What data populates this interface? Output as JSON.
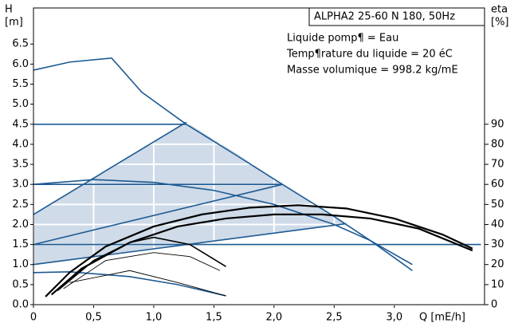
{
  "chart_data": {
    "type": "line",
    "title": "ALPHA2 25-60 N 180, 50Hz",
    "annotations": [
      "Liquide pomp¶ = Eau",
      "Temp¶rature du liquide = 20 éC",
      "Masse volumique = 998.2 kg/mE"
    ],
    "y_label": "H",
    "y_unit": "[m]",
    "y2_label": "eta",
    "y2_unit": "[%]",
    "x_label": "Q [mE/h]",
    "xlim": [
      0,
      3.75
    ],
    "ylim": [
      0,
      7.4
    ],
    "y2lim": [
      0,
      148
    ],
    "xticks": [
      0,
      {
        "value": 0.5,
        "label": "0,5"
      },
      {
        "value": 1,
        "label": "1,0"
      },
      {
        "value": 1.5,
        "label": "1,5"
      },
      {
        "value": 2,
        "label": "2,0"
      },
      {
        "value": 2.5,
        "label": "2,5"
      },
      {
        "value": 3,
        "label": "3,0"
      }
    ],
    "yticks": [
      {
        "value": 0,
        "label": "0.0"
      },
      0.5,
      {
        "value": 1,
        "label": "1.0"
      },
      1.5,
      {
        "value": 2,
        "label": "2.0"
      },
      2.5,
      {
        "value": 3,
        "label": "3.0"
      },
      3.5,
      {
        "value": 4,
        "label": "4.0"
      },
      4.5,
      {
        "value": 5,
        "label": "5.0"
      },
      5.5,
      {
        "value": 6,
        "label": "6.0"
      },
      6.5
    ],
    "y2ticks": [
      0,
      10,
      20,
      30,
      40,
      50,
      60,
      70,
      80,
      90
    ],
    "grid": true,
    "grid_color": "#ffffff",
    "area": {
      "color": "#cfdbe8",
      "x": [
        0,
        0,
        1.27,
        1.7,
        2.07,
        2.6
      ],
      "values": [
        1.0,
        2.25,
        4.55,
        3.75,
        3.0,
        2.02
      ]
    },
    "series": [
      {
        "color": "#1d5a92",
        "width": 1.6,
        "x": [
          0,
          0.3,
          0.65,
          0.9,
          1.27,
          1.7,
          2.07,
          2.5,
          2.8,
          3.15
        ],
        "values": [
          5.85,
          6.05,
          6.15,
          5.3,
          4.5,
          3.7,
          3.0,
          2.2,
          1.6,
          0.85
        ]
      },
      {
        "color": "#1d5a92",
        "width": 1.6,
        "x": [
          0,
          1.27
        ],
        "values": [
          4.5,
          4.5
        ]
      },
      {
        "color": "#1d5a92",
        "width": 1.6,
        "x": [
          0,
          2.07
        ],
        "values": [
          3.0,
          3.0
        ]
      },
      {
        "color": "#1d5a92",
        "width": 1.6,
        "x": [
          0,
          3.72
        ],
        "values": [
          1.5,
          1.5
        ]
      },
      {
        "color": "#1d5a92",
        "width": 1.6,
        "x": [
          0,
          1.27
        ],
        "values": [
          2.25,
          4.55
        ]
      },
      {
        "color": "#1d5a92",
        "width": 1.6,
        "x": [
          0,
          2.07
        ],
        "values": [
          1.5,
          3.0
        ]
      },
      {
        "color": "#1d5a92",
        "width": 1.6,
        "x": [
          0,
          2.6
        ],
        "values": [
          1.0,
          2.02
        ]
      },
      {
        "color": "#1d5a92",
        "width": 1.6,
        "x": [
          0,
          0.5,
          1.0,
          1.5,
          2.0,
          2.5,
          2.8,
          3.15
        ],
        "values": [
          3.0,
          3.12,
          3.05,
          2.85,
          2.5,
          2.0,
          1.6,
          1.0
        ]
      },
      {
        "color": "#1d5a92",
        "width": 1.6,
        "x": [
          0,
          0.3,
          0.8,
          1.2,
          1.6
        ],
        "values": [
          0.8,
          0.82,
          0.7,
          0.5,
          0.22
        ]
      },
      {
        "color": "#000000",
        "width": 2.2,
        "x": [
          0.1,
          0.3,
          0.6,
          1.0,
          1.4,
          1.8,
          2.2,
          2.6,
          3.0,
          3.4,
          3.65
        ],
        "values": [
          0.2,
          0.8,
          1.45,
          1.95,
          2.25,
          2.42,
          2.48,
          2.4,
          2.15,
          1.75,
          1.4
        ]
      },
      {
        "color": "#000000",
        "width": 2.2,
        "x": [
          0.15,
          0.4,
          0.8,
          1.2,
          1.6,
          2.0,
          2.4,
          2.8,
          3.2,
          3.65
        ],
        "values": [
          0.25,
          0.9,
          1.55,
          1.95,
          2.15,
          2.25,
          2.25,
          2.15,
          1.9,
          1.35
        ]
      },
      {
        "color": "#000000",
        "width": 1.6,
        "x": [
          0.2,
          0.5,
          0.8,
          1.0,
          1.3,
          1.6
        ],
        "values": [
          0.35,
          1.1,
          1.55,
          1.68,
          1.5,
          0.95
        ]
      },
      {
        "color": "#000000",
        "width": 0.9,
        "x": [
          0.25,
          0.6,
          1.0,
          1.3,
          1.55
        ],
        "values": [
          0.4,
          1.1,
          1.3,
          1.2,
          0.85
        ]
      },
      {
        "color": "#000000",
        "width": 0.9,
        "x": [
          0.3,
          0.8,
          1.2,
          1.6
        ],
        "values": [
          0.55,
          0.85,
          0.55,
          0.22
        ]
      }
    ]
  }
}
